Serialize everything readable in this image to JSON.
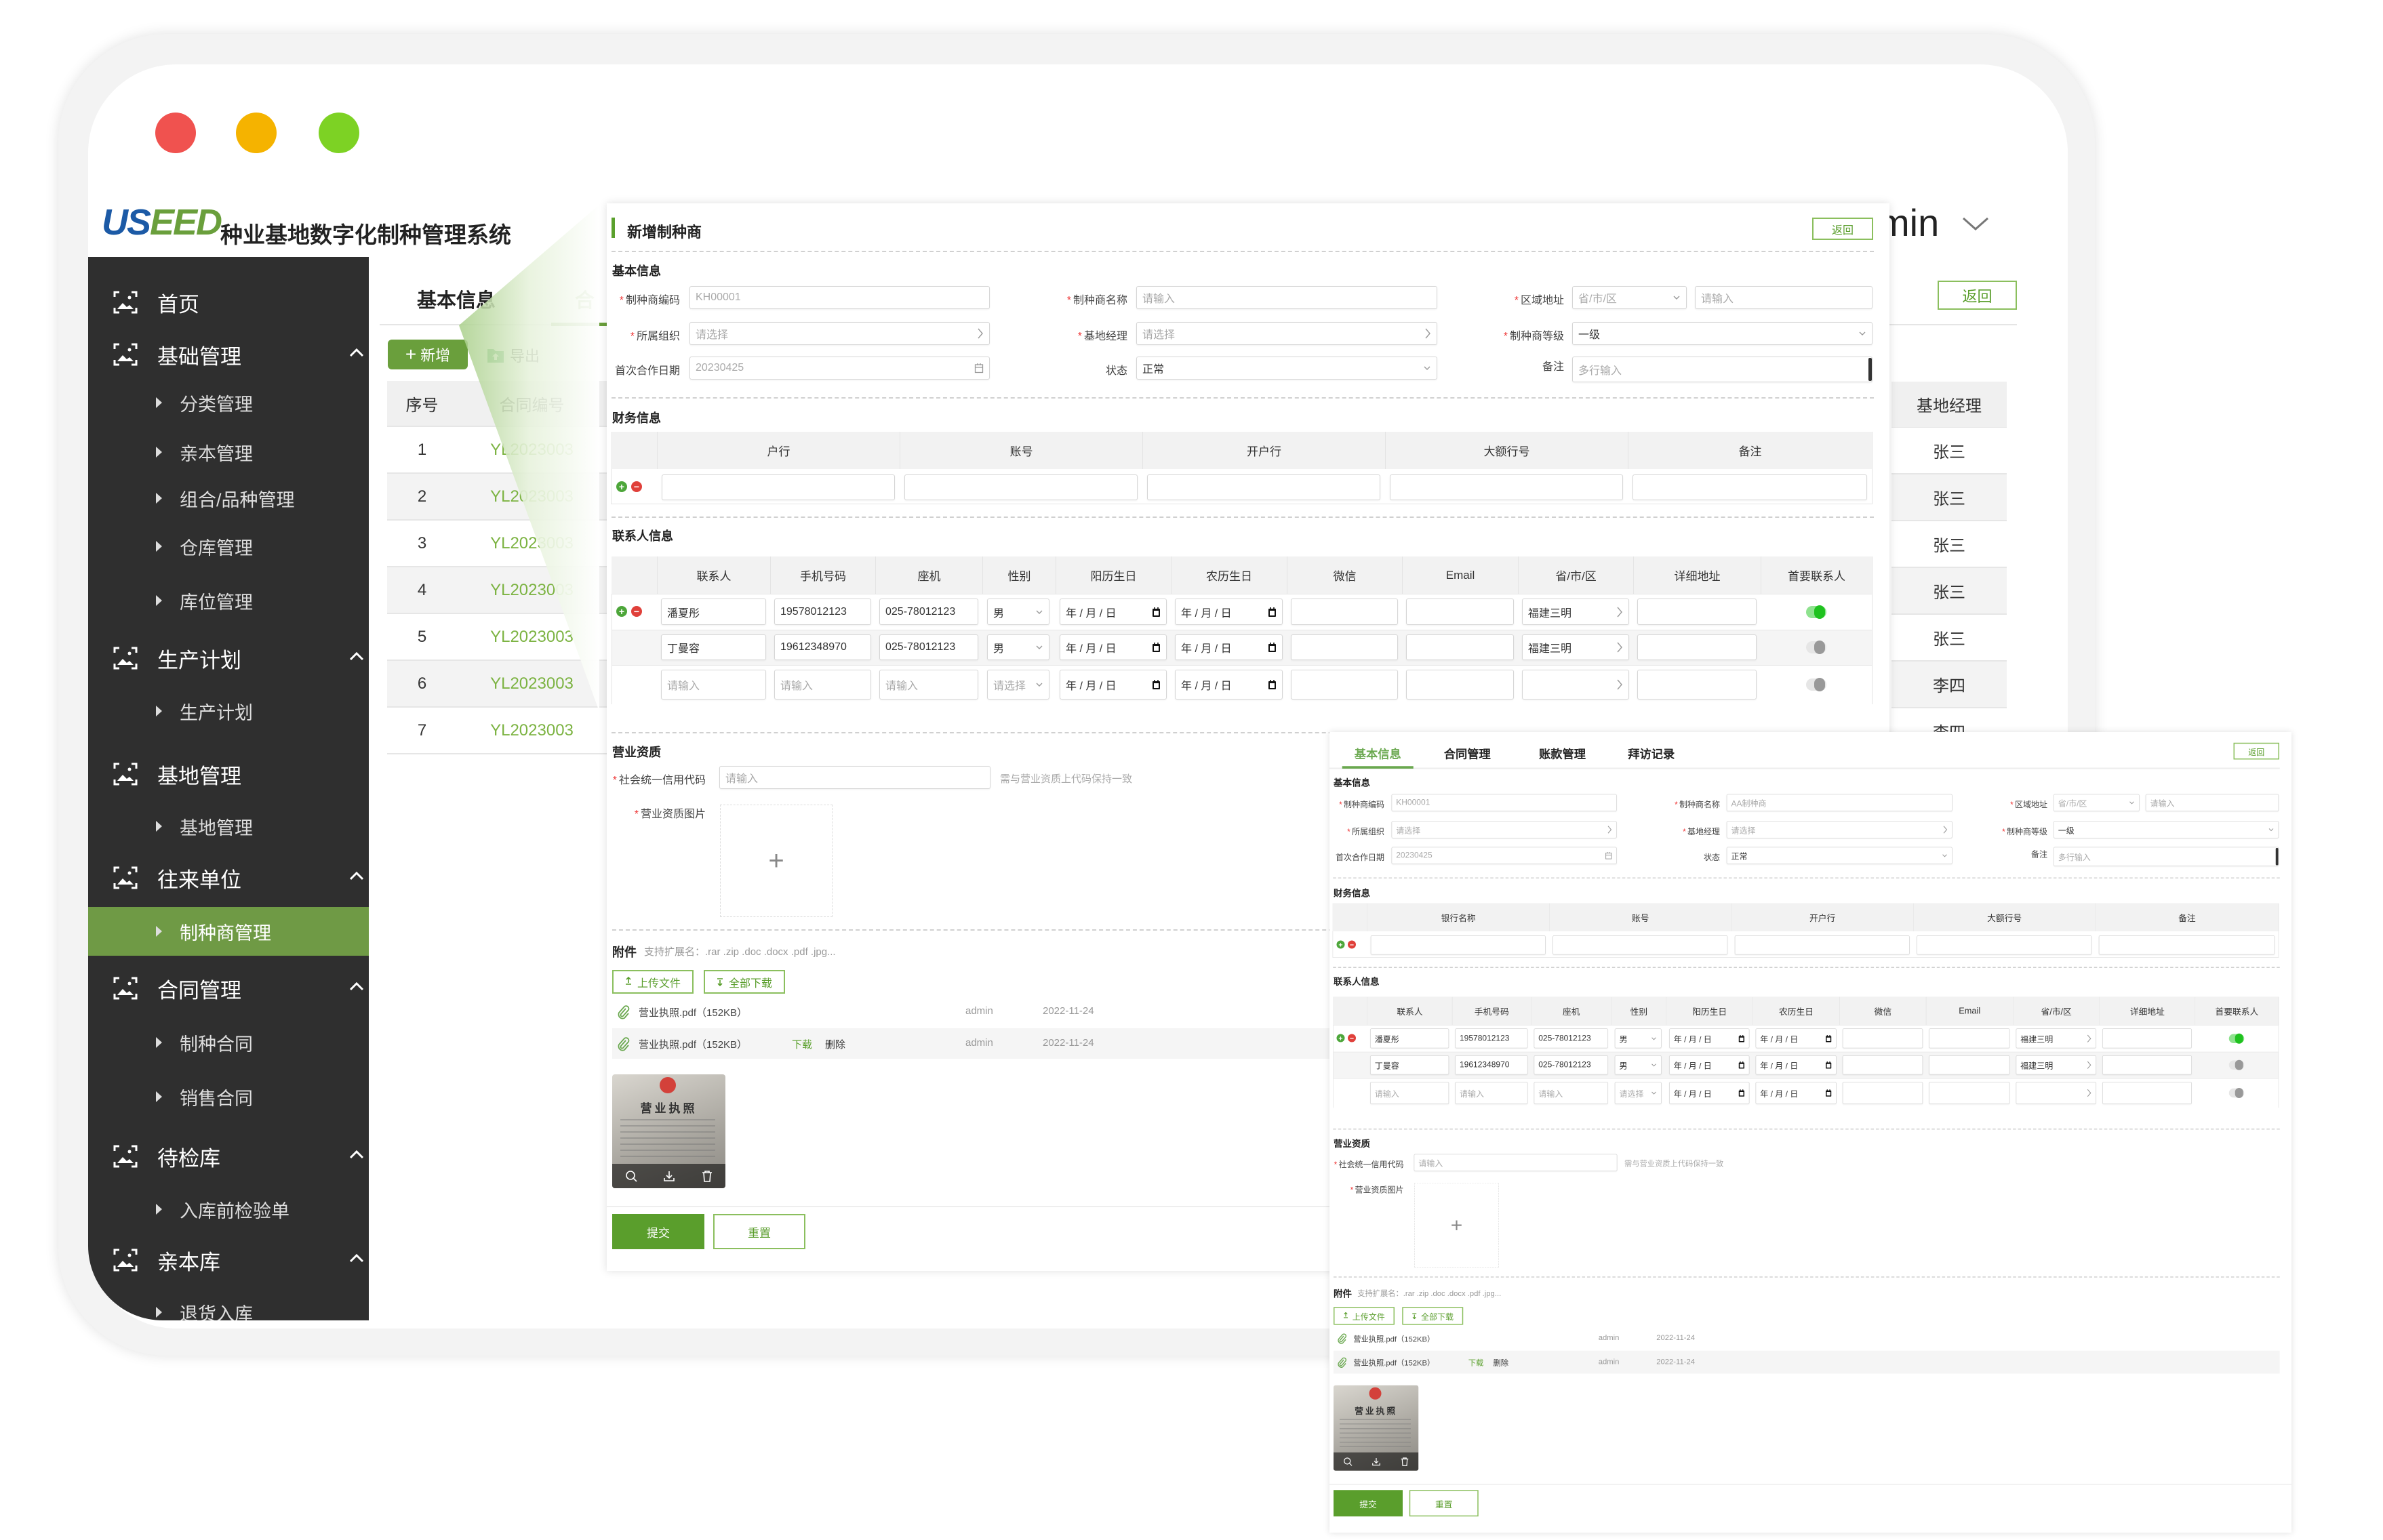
{
  "window": {
    "traffic_lights": [
      "#f0524f",
      "#f5b300",
      "#7dd224"
    ]
  },
  "colors": {
    "accent": "#6a9f3c",
    "sidebar_bg": "#2f2f2f",
    "sidebar_active": "#6f9a45",
    "link": "#7cb342",
    "danger": "#e0403a"
  },
  "app": {
    "logo_text": "USEED",
    "title": "种业基地数字化制种管理系统",
    "user_partial": "min"
  },
  "sidebar": {
    "items": [
      {
        "label": "首页",
        "type": "group",
        "icon": "image-icon"
      },
      {
        "label": "基础管理",
        "type": "group",
        "icon": "image-icon",
        "expanded": true
      },
      {
        "label": "分类管理",
        "type": "sub"
      },
      {
        "label": "亲本管理",
        "type": "sub"
      },
      {
        "label": "组合/品种管理",
        "type": "sub"
      },
      {
        "label": "仓库管理",
        "type": "sub"
      },
      {
        "label": "库位管理",
        "type": "sub"
      },
      {
        "label": "生产计划",
        "type": "group",
        "icon": "image-icon",
        "expanded": true
      },
      {
        "label": "生产计划",
        "type": "sub"
      },
      {
        "label": "基地管理",
        "type": "group",
        "icon": "image-icon"
      },
      {
        "label": "基地管理",
        "type": "sub"
      },
      {
        "label": "往来单位",
        "type": "group",
        "icon": "image-icon",
        "expanded": true
      },
      {
        "label": "制种商管理",
        "type": "sub",
        "active": true
      },
      {
        "label": "合同管理",
        "type": "group",
        "icon": "image-icon",
        "expanded": true
      },
      {
        "label": "制种合同",
        "type": "sub"
      },
      {
        "label": "销售合同",
        "type": "sub"
      },
      {
        "label": "待检库",
        "type": "group",
        "icon": "image-icon",
        "expanded": true
      },
      {
        "label": "入库前检验单",
        "type": "sub"
      },
      {
        "label": "亲本库",
        "type": "group",
        "icon": "image-icon",
        "expanded": true
      },
      {
        "label": "退货入库",
        "type": "sub"
      }
    ]
  },
  "background_page": {
    "tabs": [
      "基本信息",
      "合"
    ],
    "add_label": "新增",
    "export_label": "导出",
    "columns": [
      "序号",
      "合同编号"
    ],
    "rows": [
      {
        "no": "1",
        "code": "YL2023003"
      },
      {
        "no": "2",
        "code": "YL2023003"
      },
      {
        "no": "3",
        "code": "YL2023003"
      },
      {
        "no": "4",
        "code": "YL2023003"
      },
      {
        "no": "5",
        "code": "YL2023003"
      },
      {
        "no": "6",
        "code": "YL2023003"
      },
      {
        "no": "7",
        "code": "YL2023003"
      }
    ],
    "manager_column": "基地经理",
    "managers": [
      "张三",
      "张三",
      "张三",
      "张三",
      "张三",
      "李四",
      "李四"
    ],
    "back_label": "返回"
  },
  "form": {
    "title": "新增制种商",
    "back_label": "返回",
    "required_mark": "*",
    "sections": {
      "basic": "基本信息",
      "finance": "财务信息",
      "contacts": "联系人信息",
      "license": "营业资质",
      "attachments": "附件"
    },
    "basic": {
      "code": {
        "label": "制种商编码",
        "value": "KH00001"
      },
      "name": {
        "label": "制种商名称",
        "placeholder": "请输入"
      },
      "region": {
        "label": "区域地址",
        "select_placeholder": "省/市/区",
        "placeholder": "请输入"
      },
      "org": {
        "label": "所属组织",
        "placeholder": "请选择"
      },
      "manager": {
        "label": "基地经理",
        "placeholder": "请选择"
      },
      "level": {
        "label": "制种商等级",
        "value": "一级"
      },
      "first_date": {
        "label": "首次合作日期",
        "value": "20230425"
      },
      "status": {
        "label": "状态",
        "value": "正常"
      },
      "remark": {
        "label": "备注",
        "placeholder": "多行输入"
      }
    },
    "finance": {
      "columns": [
        "户行",
        "账号",
        "开户行",
        "大额行号",
        "备注"
      ]
    },
    "contacts": {
      "columns": [
        "联系人",
        "手机号码",
        "座机",
        "性别",
        "阳历生日",
        "农历生日",
        "微信",
        "Email",
        "省/市/区",
        "详细地址",
        "首要联系人"
      ],
      "rows": [
        {
          "name": "潘夏彤",
          "phone": "19578012123",
          "landline": "025-78012123",
          "gender": "男",
          "solar_birthday": "年 / 月 / 日",
          "lunar_birthday": "年 / 月 / 日",
          "region": "福建三明",
          "primary": true
        },
        {
          "name": "丁曼容",
          "phone": "19612348970",
          "landline": "025-78012123",
          "gender": "男",
          "solar_birthday": "年 / 月 / 日",
          "lunar_birthday": "年 / 月 / 日",
          "region": "福建三明",
          "primary": false
        },
        {
          "name_placeholder": "请输入",
          "phone_placeholder": "请输入",
          "landline_placeholder": "请输入",
          "gender_placeholder": "请选择",
          "solar_birthday": "年 / 月 / 日",
          "lunar_birthday": "年 / 月 / 日",
          "primary": false
        }
      ]
    },
    "license": {
      "credit_label": "社会统一信用代码",
      "credit_placeholder": "请输入",
      "credit_hint": "需与营业资质上代码保持一致",
      "image_label": "营业资质图片",
      "upload_plus": "+",
      "thumbnail_text": "营业执照"
    },
    "attachments": {
      "hint": "支持扩展名：.rar .zip .doc .docx .pdf .jpg...",
      "upload_label": "上传文件",
      "download_all_label": "全部下载",
      "files": [
        {
          "name": "营业执照.pdf（152KB）",
          "user": "admin",
          "date": "2022-11-24"
        },
        {
          "name": "营业执照.pdf（152KB）",
          "download": "下载",
          "delete": "删除",
          "user": "admin",
          "date": "2022-11-24"
        }
      ]
    },
    "submit_label": "提交",
    "reset_label": "重置"
  },
  "detail_form": {
    "tabs": [
      "基本信息",
      "合同管理",
      "账款管理",
      "拜访记录"
    ],
    "basic": {
      "name": {
        "value": "AA制种商"
      }
    },
    "finance": {
      "columns": [
        "银行名称",
        "账号",
        "开户行",
        "大额行号",
        "备注"
      ]
    }
  }
}
